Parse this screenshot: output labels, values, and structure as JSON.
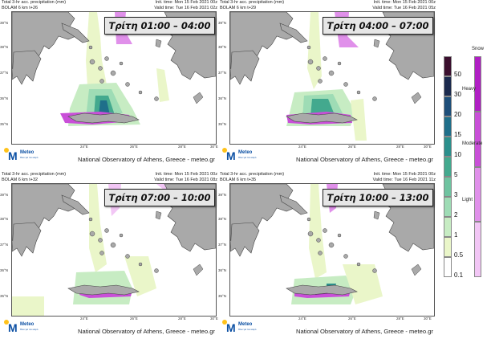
{
  "panels": [
    {
      "title": "Τρίτη 01:00 – 04:00",
      "hdr_left_1": "Total 3-hr acc. precipitation (mm)",
      "hdr_left_2": "BOLAM 6 km t+26",
      "init": "Init. time: Mon 15 Feb 2021 00z",
      "valid": "Valid time: Tue 16 Feb 2021 02z"
    },
    {
      "title": "Τρίτη 04:00 – 07:00",
      "hdr_left_1": "Total 3-hr acc. precipitation (mm)",
      "hdr_left_2": "BOLAM 6 km t+29",
      "init": "Init. time: Mon 15 Feb 2021 00z",
      "valid": "Valid time: Tue 16 Feb 2021 05z"
    },
    {
      "title": "Τρίτη 07:00 – 10:00",
      "hdr_left_1": "Total 3-hr acc. precipitation (mm)",
      "hdr_left_2": "BOLAM 6 km t+32",
      "init": "Init. time: Mon 15 Feb 2021 00z",
      "valid": "Valid time: Tue 16 Feb 2021 08z"
    },
    {
      "title": "Τρίτη 10:00 – 13:00",
      "hdr_left_1": "Total 3-hr acc. precipitation (mm)",
      "hdr_left_2": "BOLAM 6 km t+35",
      "init": "Init. time: Mon 15 Feb 2021 00z",
      "valid": "Valid time: Tue 16 Feb 2021 11z"
    }
  ],
  "footer": "National Observatory of Athens, Greece - meteo.gr",
  "logo": {
    "name": "Meteo",
    "sub": "Όλοι για τον καιρό"
  },
  "axes": {
    "lat": [
      "39°N",
      "38°N",
      "37°N",
      "36°N",
      "35°N"
    ],
    "lon": [
      "24°E",
      "26°E",
      "28°E",
      "30°E"
    ]
  },
  "legend": {
    "snow_title": "Snow",
    "levels": [
      "50",
      "30",
      "20",
      "15",
      "10",
      "5",
      "3",
      "2",
      "1",
      "0.5",
      "0.1"
    ],
    "rain_colors": [
      "#3b0f2e",
      "#1b2a4e",
      "#1e4f7a",
      "#1f6f8a",
      "#2b8f8c",
      "#43a98e",
      "#6fc3a0",
      "#9edcb5",
      "#c7ecc3",
      "#eaf6c9",
      "#ffffff"
    ],
    "snow_colors": [
      "#b01fc4",
      "#c94fd8",
      "#e090ea",
      "#f2c6f5"
    ],
    "intensity": [
      "Heavy",
      "Moderate",
      "Light"
    ]
  },
  "colors": {
    "land": "#a9a9a9",
    "sea": "#ffffff",
    "border": "#444444"
  }
}
